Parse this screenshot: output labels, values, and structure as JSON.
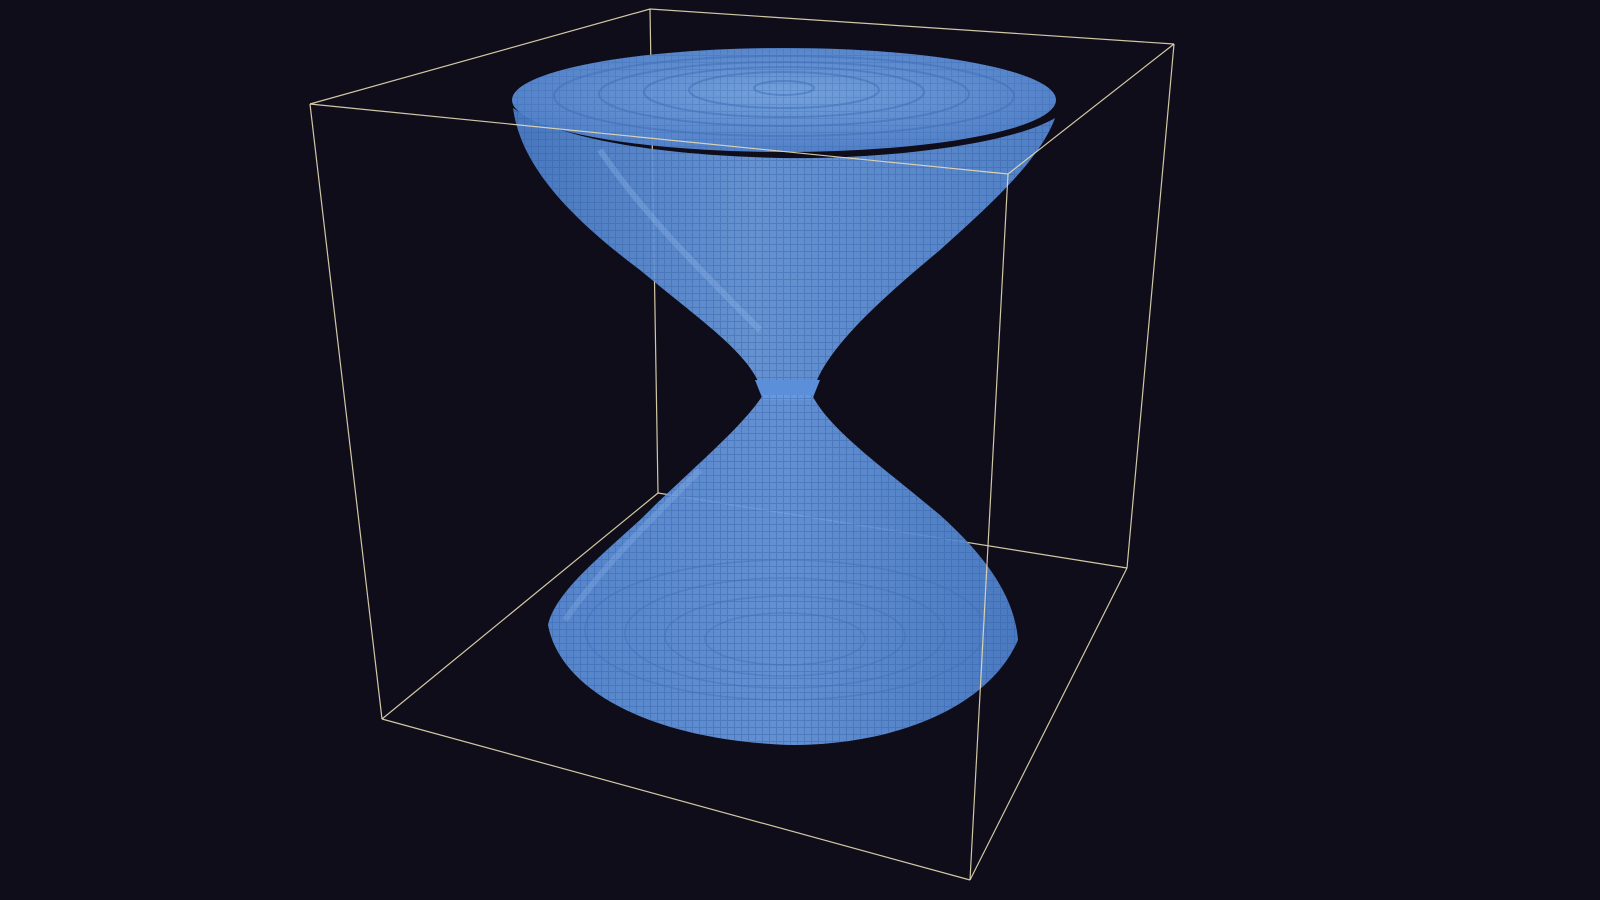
{
  "scene": {
    "background_color": "#0f0d1a",
    "bounding_box_color": "#e8dcb4",
    "voxel_color": "#5b8fd9",
    "voxel_highlight_color": "#8fb6ec",
    "voxel_shadow_color": "#3f6fb8",
    "shape": "double-cone-hourglass",
    "rendering": "voxel"
  }
}
